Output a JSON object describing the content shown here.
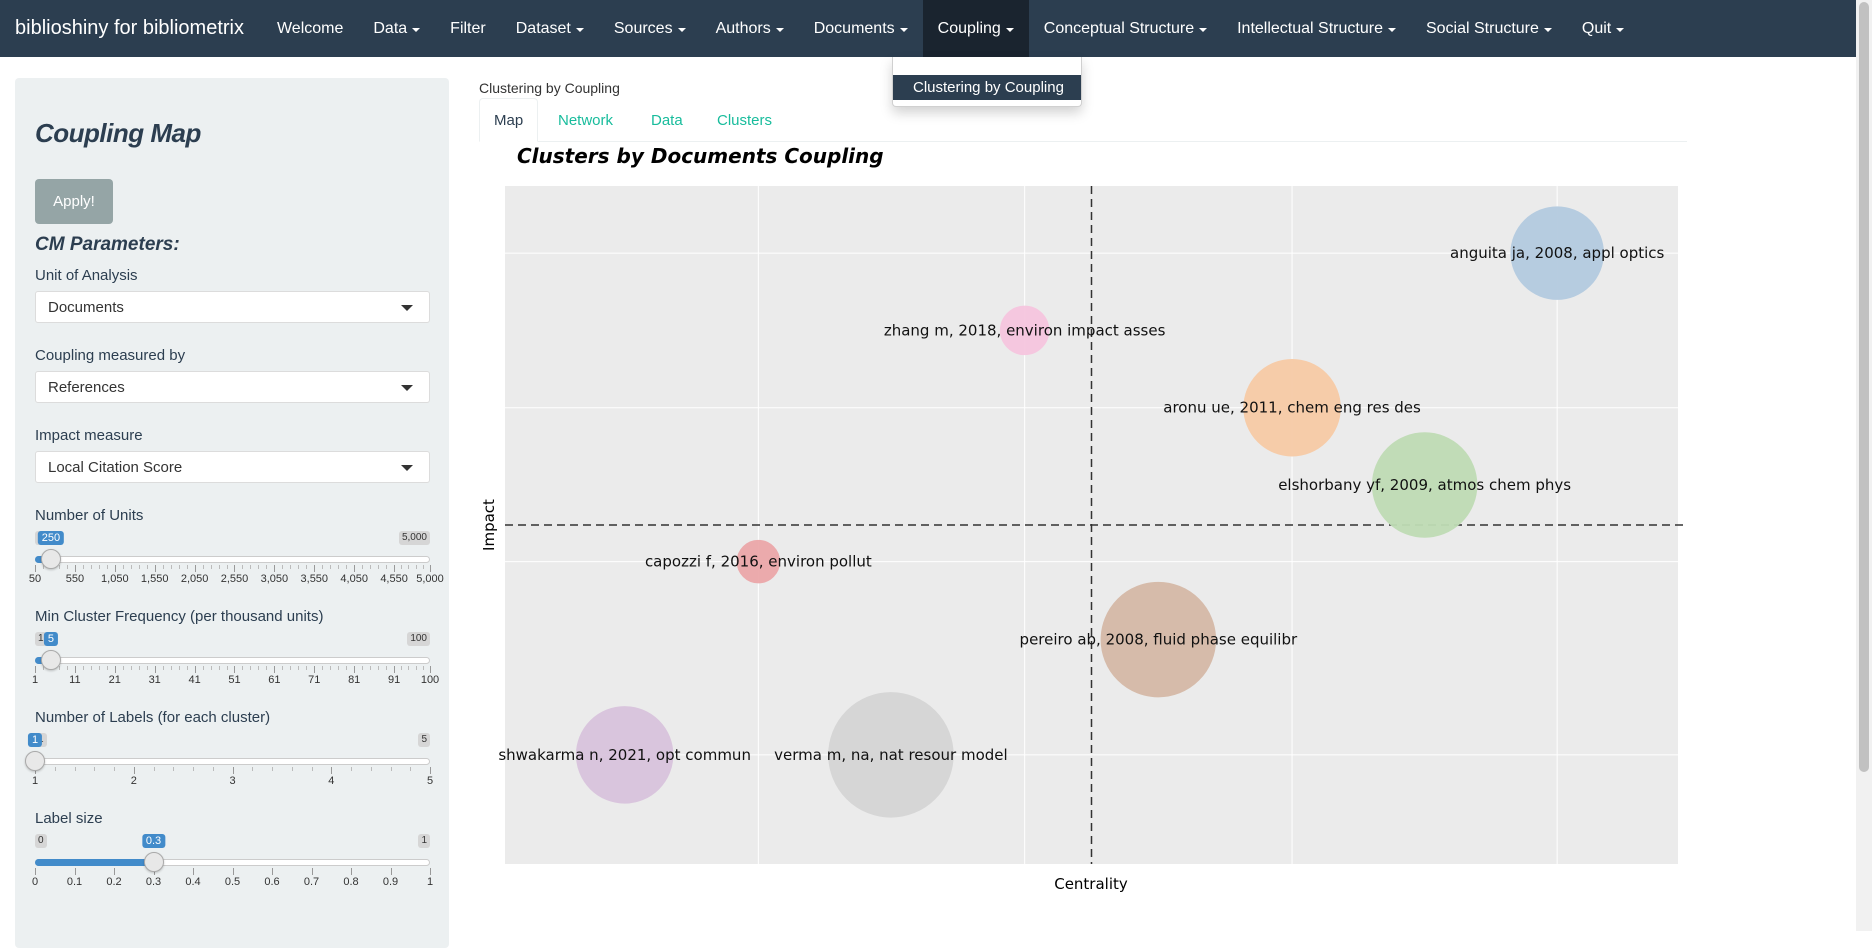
{
  "navbar": {
    "brand": "biblioshiny for bibliometrix",
    "items": [
      {
        "label": "Welcome",
        "caret": false
      },
      {
        "label": "Data",
        "caret": true
      },
      {
        "label": "Filter",
        "caret": false
      },
      {
        "label": "Dataset",
        "caret": true
      },
      {
        "label": "Sources",
        "caret": true
      },
      {
        "label": "Authors",
        "caret": true
      },
      {
        "label": "Documents",
        "caret": true
      },
      {
        "label": "Coupling",
        "caret": true
      },
      {
        "label": "Conceptual Structure",
        "caret": true
      },
      {
        "label": "Intellectual Structure",
        "caret": true
      },
      {
        "label": "Social Structure",
        "caret": true
      },
      {
        "label": "Quit",
        "caret": true
      }
    ],
    "active": "Coupling"
  },
  "dropdown": {
    "items": [
      "Clustering by Coupling"
    ]
  },
  "sidebar": {
    "title": "Coupling Map",
    "apply_label": "Apply!",
    "params_heading": "CM Parameters:",
    "unit_of_analysis": {
      "label": "Unit of Analysis",
      "value": "Documents"
    },
    "coupling_measured_by": {
      "label": "Coupling measured by",
      "value": "References"
    },
    "impact_measure": {
      "label": "Impact measure",
      "value": "Local Citation Score"
    },
    "sliders": [
      {
        "label": "Number of Units",
        "min": 50,
        "max": 5000,
        "min_label": "250",
        "max_label": "5,000",
        "value": 250,
        "value_label": "250",
        "tick_labels": [
          "50",
          "550",
          "1,050",
          "1,550",
          "2,050",
          "2,550",
          "3,050",
          "3,550",
          "4,050",
          "4,550",
          "5,000"
        ],
        "tick_values": [
          50,
          550,
          1050,
          1550,
          2050,
          2550,
          3050,
          3550,
          4050,
          4550,
          5000
        ],
        "minor_per": 4
      },
      {
        "label": "Min Cluster Frequency (per thousand units)",
        "min": 1,
        "max": 100,
        "min_label": "1",
        "max_label": "100",
        "value": 5,
        "value_label": "5",
        "tick_labels": [
          "1",
          "11",
          "21",
          "31",
          "41",
          "51",
          "61",
          "71",
          "81",
          "91",
          "100"
        ],
        "tick_values": [
          1,
          11,
          21,
          31,
          41,
          51,
          61,
          71,
          81,
          91,
          100
        ],
        "minor_per": 4
      },
      {
        "label": "Number of Labels (for each cluster)",
        "min": 1,
        "max": 5,
        "min_label": "1",
        "max_label": "5",
        "value": 1,
        "value_label": "1",
        "tick_labels": [
          "1",
          "2",
          "3",
          "4",
          "5"
        ],
        "tick_values": [
          1,
          2,
          3,
          4,
          5
        ],
        "minor_per": 4
      },
      {
        "label": "Label size",
        "min": 0,
        "max": 1,
        "min_label": "0",
        "max_label": "1",
        "value": 0.3,
        "value_label": "0.3",
        "tick_labels": [
          "0",
          "0.1",
          "0.2",
          "0.3",
          "0.4",
          "0.5",
          "0.6",
          "0.7",
          "0.8",
          "0.9",
          "1"
        ],
        "tick_values": [
          0,
          0.1,
          0.2,
          0.3,
          0.4,
          0.5,
          0.6,
          0.7,
          0.8,
          0.9,
          1
        ],
        "minor_per": 0
      }
    ]
  },
  "main": {
    "breadcrumb": "Clustering by Coupling",
    "tabs": [
      "Map",
      "Network",
      "Data",
      "Clusters"
    ],
    "active_tab": "Map"
  },
  "chart_data": {
    "type": "scatter",
    "title": "Clusters by Documents Coupling",
    "xlabel": "Centrality",
    "ylabel": "Impact",
    "xlim": [
      0,
      100
    ],
    "ylim": [
      0,
      100
    ],
    "reference_lines": {
      "x": 50,
      "y": 50
    },
    "grid": true,
    "points": [
      {
        "label": "anguita ja, 2008, appl optics",
        "x": 89.7,
        "y": 90.1,
        "size": 46,
        "color": "#b4cbe0"
      },
      {
        "label": "zhang m, 2018, environ impact asses",
        "x": 44.3,
        "y": 78.7,
        "size": 24,
        "color": "#f6c6df"
      },
      {
        "label": "aronu ue, 2011, chem eng res des",
        "x": 67.1,
        "y": 67.3,
        "size": 48,
        "color": "#f7cba6"
      },
      {
        "label": "elshorbany yf, 2009, atmos chem phys",
        "x": 78.4,
        "y": 55.9,
        "size": 52,
        "color": "#bfdcb5"
      },
      {
        "label": "capozzi f, 2016, environ pollut",
        "x": 21.6,
        "y": 44.6,
        "size": 21,
        "color": "#eba7a9"
      },
      {
        "label": "pereiro ab, 2008, fluid phase equilibr",
        "x": 55.7,
        "y": 33.1,
        "size": 57,
        "color": "#d5b9a7"
      },
      {
        "label": "shwakarma n, 2021, opt commun",
        "x": 10.2,
        "y": 16.1,
        "size": 48,
        "color": "#d9c3dd"
      },
      {
        "label": "verma m, na, nat resour model",
        "x": 32.9,
        "y": 16.1,
        "size": 62,
        "color": "#d5d5d5"
      }
    ]
  }
}
